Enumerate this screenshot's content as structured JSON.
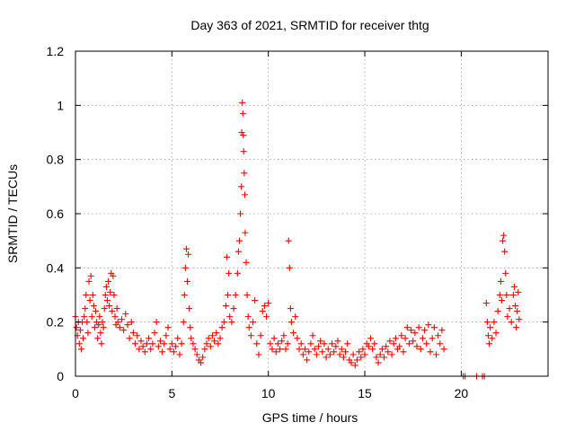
{
  "chart_data": {
    "type": "scatter",
    "title": "Day 363 of 2021, SRMTID for receiver thtg",
    "xlabel": "GPS time / hours",
    "ylabel": "SRMTID / TECUs",
    "xlim": [
      0,
      24.5
    ],
    "ylim": [
      0,
      1.2
    ],
    "x_ticks": [
      "0",
      "5",
      "10",
      "15",
      "20"
    ],
    "x_tick_values": [
      0,
      5,
      10,
      15,
      20
    ],
    "y_ticks": [
      "0",
      "0.2",
      "0.4",
      "0.6",
      "0.8",
      "1",
      "1.2"
    ],
    "y_tick_values": [
      0,
      0.2,
      0.4,
      0.6,
      0.8,
      1.0,
      1.2
    ],
    "grid": true,
    "marker": "+",
    "color": "#ff0000",
    "series": [
      {
        "name": "SRMTID",
        "points": [
          [
            0.0,
            0.22
          ],
          [
            0.05,
            0.18
          ],
          [
            0.1,
            0.15
          ],
          [
            0.15,
            0.2
          ],
          [
            0.2,
            0.12
          ],
          [
            0.25,
            0.17
          ],
          [
            0.3,
            0.1
          ],
          [
            0.35,
            0.2
          ],
          [
            0.4,
            0.14
          ],
          [
            0.45,
            0.22
          ],
          [
            0.5,
            0.25
          ],
          [
            0.55,
            0.3
          ],
          [
            0.6,
            0.2
          ],
          [
            0.65,
            0.16
          ],
          [
            0.7,
            0.35
          ],
          [
            0.75,
            0.28
          ],
          [
            0.8,
            0.37
          ],
          [
            0.85,
            0.22
          ],
          [
            0.9,
            0.3
          ],
          [
            0.95,
            0.26
          ],
          [
            1.0,
            0.18
          ],
          [
            1.05,
            0.24
          ],
          [
            1.1,
            0.2
          ],
          [
            1.15,
            0.14
          ],
          [
            1.2,
            0.19
          ],
          [
            1.25,
            0.22
          ],
          [
            1.3,
            0.16
          ],
          [
            1.35,
            0.12
          ],
          [
            1.4,
            0.2
          ],
          [
            1.45,
            0.18
          ],
          [
            1.5,
            0.25
          ],
          [
            1.55,
            0.3
          ],
          [
            1.6,
            0.33
          ],
          [
            1.65,
            0.28
          ],
          [
            1.7,
            0.35
          ],
          [
            1.75,
            0.26
          ],
          [
            1.8,
            0.31
          ],
          [
            1.85,
            0.38
          ],
          [
            1.9,
            0.24
          ],
          [
            1.95,
            0.37
          ],
          [
            2.0,
            0.3
          ],
          [
            2.05,
            0.22
          ],
          [
            2.1,
            0.19
          ],
          [
            2.15,
            0.25
          ],
          [
            2.2,
            0.2
          ],
          [
            2.3,
            0.18
          ],
          [
            2.4,
            0.21
          ],
          [
            2.5,
            0.17
          ],
          [
            2.6,
            0.23
          ],
          [
            2.7,
            0.19
          ],
          [
            2.8,
            0.14
          ],
          [
            2.9,
            0.2
          ],
          [
            3.0,
            0.16
          ],
          [
            3.1,
            0.12
          ],
          [
            3.2,
            0.15
          ],
          [
            3.3,
            0.1
          ],
          [
            3.4,
            0.13
          ],
          [
            3.5,
            0.11
          ],
          [
            3.6,
            0.09
          ],
          [
            3.7,
            0.12
          ],
          [
            3.8,
            0.14
          ],
          [
            3.9,
            0.1
          ],
          [
            4.0,
            0.12
          ],
          [
            4.1,
            0.16
          ],
          [
            4.2,
            0.2
          ],
          [
            4.3,
            0.11
          ],
          [
            4.4,
            0.13
          ],
          [
            4.5,
            0.09
          ],
          [
            4.6,
            0.12
          ],
          [
            4.7,
            0.15
          ],
          [
            4.8,
            0.18
          ],
          [
            4.9,
            0.1
          ],
          [
            5.0,
            0.12
          ],
          [
            5.1,
            0.09
          ],
          [
            5.2,
            0.11
          ],
          [
            5.3,
            0.14
          ],
          [
            5.4,
            0.08
          ],
          [
            5.5,
            0.12
          ],
          [
            5.6,
            0.2
          ],
          [
            5.65,
            0.3
          ],
          [
            5.7,
            0.4
          ],
          [
            5.75,
            0.47
          ],
          [
            5.8,
            0.35
          ],
          [
            5.85,
            0.45
          ],
          [
            5.9,
            0.25
          ],
          [
            5.95,
            0.18
          ],
          [
            6.0,
            0.14
          ],
          [
            6.1,
            0.12
          ],
          [
            6.2,
            0.1
          ],
          [
            6.3,
            0.08
          ],
          [
            6.4,
            0.06
          ],
          [
            6.5,
            0.05
          ],
          [
            6.6,
            0.07
          ],
          [
            6.7,
            0.1
          ],
          [
            6.8,
            0.12
          ],
          [
            6.9,
            0.14
          ],
          [
            7.0,
            0.11
          ],
          [
            7.1,
            0.15
          ],
          [
            7.2,
            0.13
          ],
          [
            7.3,
            0.16
          ],
          [
            7.4,
            0.12
          ],
          [
            7.5,
            0.14
          ],
          [
            7.6,
            0.18
          ],
          [
            7.7,
            0.2
          ],
          [
            7.8,
            0.26
          ],
          [
            7.85,
            0.44
          ],
          [
            7.9,
            0.3
          ],
          [
            7.95,
            0.38
          ],
          [
            8.0,
            0.22
          ],
          [
            8.1,
            0.2
          ],
          [
            8.2,
            0.25
          ],
          [
            8.3,
            0.3
          ],
          [
            8.4,
            0.38
          ],
          [
            8.45,
            0.46
          ],
          [
            8.5,
            0.5
          ],
          [
            8.55,
            0.6
          ],
          [
            8.6,
            0.7
          ],
          [
            8.62,
            0.9
          ],
          [
            8.65,
            1.01
          ],
          [
            8.68,
            0.97
          ],
          [
            8.7,
            0.89
          ],
          [
            8.72,
            0.83
          ],
          [
            8.75,
            0.75
          ],
          [
            8.78,
            0.67
          ],
          [
            8.8,
            0.53
          ],
          [
            8.85,
            0.42
          ],
          [
            8.9,
            0.3
          ],
          [
            8.95,
            0.22
          ],
          [
            9.0,
            0.18
          ],
          [
            9.1,
            0.15
          ],
          [
            9.2,
            0.2
          ],
          [
            9.3,
            0.28
          ],
          [
            9.4,
            0.12
          ],
          [
            9.5,
            0.08
          ],
          [
            9.6,
            0.15
          ],
          [
            9.7,
            0.24
          ],
          [
            9.8,
            0.26
          ],
          [
            9.9,
            0.22
          ],
          [
            10.0,
            0.27
          ],
          [
            10.1,
            0.12
          ],
          [
            10.2,
            0.1
          ],
          [
            10.3,
            0.14
          ],
          [
            10.4,
            0.09
          ],
          [
            10.5,
            0.12
          ],
          [
            10.6,
            0.1
          ],
          [
            10.7,
            0.13
          ],
          [
            10.8,
            0.15
          ],
          [
            10.9,
            0.1
          ],
          [
            11.0,
            0.12
          ],
          [
            11.05,
            0.5
          ],
          [
            11.1,
            0.4
          ],
          [
            11.15,
            0.25
          ],
          [
            11.2,
            0.2
          ],
          [
            11.3,
            0.16
          ],
          [
            11.4,
            0.22
          ],
          [
            11.5,
            0.14
          ],
          [
            11.6,
            0.1
          ],
          [
            11.7,
            0.12
          ],
          [
            11.8,
            0.08
          ],
          [
            11.9,
            0.1
          ],
          [
            12.0,
            0.06
          ],
          [
            12.1,
            0.09
          ],
          [
            12.2,
            0.12
          ],
          [
            12.3,
            0.15
          ],
          [
            12.4,
            0.1
          ],
          [
            12.5,
            0.08
          ],
          [
            12.6,
            0.11
          ],
          [
            12.7,
            0.13
          ],
          [
            12.8,
            0.09
          ],
          [
            12.9,
            0.12
          ],
          [
            13.0,
            0.07
          ],
          [
            13.1,
            0.1
          ],
          [
            13.2,
            0.08
          ],
          [
            13.3,
            0.12
          ],
          [
            13.4,
            0.09
          ],
          [
            13.5,
            0.11
          ],
          [
            13.6,
            0.13
          ],
          [
            13.7,
            0.08
          ],
          [
            13.8,
            0.1
          ],
          [
            13.9,
            0.07
          ],
          [
            14.0,
            0.09
          ],
          [
            14.1,
            0.12
          ],
          [
            14.2,
            0.06
          ],
          [
            14.3,
            0.05
          ],
          [
            14.4,
            0.08
          ],
          [
            14.5,
            0.04
          ],
          [
            14.6,
            0.06
          ],
          [
            14.7,
            0.09
          ],
          [
            14.8,
            0.07
          ],
          [
            14.9,
            0.1
          ],
          [
            15.0,
            0.08
          ],
          [
            15.1,
            0.12
          ],
          [
            15.2,
            0.11
          ],
          [
            15.3,
            0.14
          ],
          [
            15.4,
            0.1
          ],
          [
            15.5,
            0.12
          ],
          [
            15.6,
            0.07
          ],
          [
            15.7,
            0.05
          ],
          [
            15.8,
            0.08
          ],
          [
            15.9,
            0.1
          ],
          [
            16.0,
            0.07
          ],
          [
            16.1,
            0.11
          ],
          [
            16.2,
            0.09
          ],
          [
            16.3,
            0.13
          ],
          [
            16.4,
            0.08
          ],
          [
            16.5,
            0.12
          ],
          [
            16.6,
            0.14
          ],
          [
            16.7,
            0.1
          ],
          [
            16.8,
            0.11
          ],
          [
            16.9,
            0.15
          ],
          [
            17.0,
            0.09
          ],
          [
            17.1,
            0.14
          ],
          [
            17.2,
            0.18
          ],
          [
            17.3,
            0.12
          ],
          [
            17.4,
            0.17
          ],
          [
            17.5,
            0.13
          ],
          [
            17.6,
            0.16
          ],
          [
            17.7,
            0.11
          ],
          [
            17.8,
            0.18
          ],
          [
            17.9,
            0.1
          ],
          [
            18.0,
            0.14
          ],
          [
            18.1,
            0.17
          ],
          [
            18.2,
            0.12
          ],
          [
            18.3,
            0.19
          ],
          [
            18.4,
            0.09
          ],
          [
            18.5,
            0.14
          ],
          [
            18.6,
            0.18
          ],
          [
            18.7,
            0.08
          ],
          [
            18.8,
            0.15
          ],
          [
            18.9,
            0.12
          ],
          [
            19.0,
            0.17
          ],
          [
            19.1,
            0.1
          ],
          [
            20.1,
            0.0
          ],
          [
            20.2,
            0.0
          ],
          [
            20.8,
            0.0
          ],
          [
            21.1,
            0.0
          ],
          [
            21.2,
            0.0
          ],
          [
            21.3,
            0.27
          ],
          [
            21.35,
            0.2
          ],
          [
            21.4,
            0.15
          ],
          [
            21.45,
            0.12
          ],
          [
            21.5,
            0.18
          ],
          [
            21.6,
            0.14
          ],
          [
            21.7,
            0.2
          ],
          [
            21.8,
            0.16
          ],
          [
            21.9,
            0.24
          ],
          [
            22.0,
            0.3
          ],
          [
            22.05,
            0.35
          ],
          [
            22.1,
            0.28
          ],
          [
            22.15,
            0.5
          ],
          [
            22.2,
            0.52
          ],
          [
            22.25,
            0.46
          ],
          [
            22.3,
            0.38
          ],
          [
            22.35,
            0.3
          ],
          [
            22.4,
            0.22
          ],
          [
            22.5,
            0.25
          ],
          [
            22.6,
            0.2
          ],
          [
            22.7,
            0.3
          ],
          [
            22.75,
            0.33
          ],
          [
            22.8,
            0.26
          ],
          [
            22.85,
            0.18
          ],
          [
            22.9,
            0.24
          ],
          [
            22.95,
            0.31
          ],
          [
            23.0,
            0.21
          ]
        ]
      }
    ]
  }
}
